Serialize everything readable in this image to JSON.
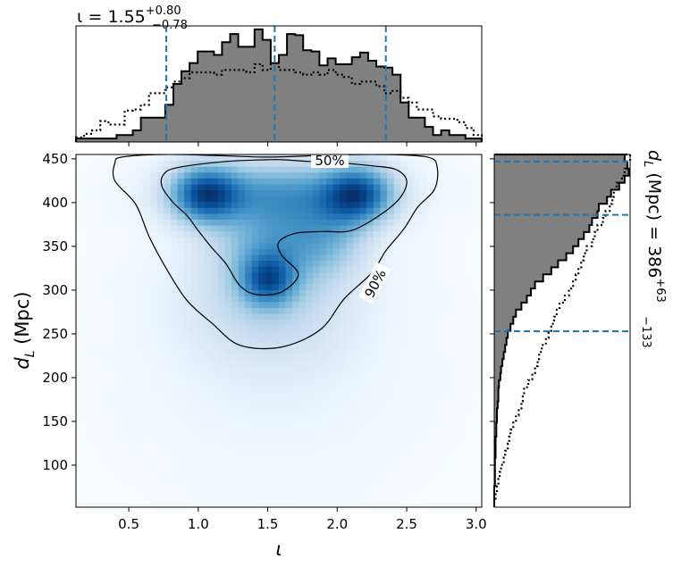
{
  "chart_data": [
    {
      "id": "marginal-iota",
      "type": "histogram-step",
      "title_symbol": "ι",
      "title_value": "1.55",
      "title_plus": "+0.80",
      "title_minus": "−0.78",
      "xlim": [
        0.12,
        3.04
      ],
      "quantile_lines": [
        0.77,
        1.55,
        2.35
      ],
      "bin_edges_start": 0.12,
      "bin_width": 0.0584,
      "posterior": [
        0.03,
        0.03,
        0.03,
        0.03,
        0.03,
        0.06,
        0.06,
        0.1,
        0.21,
        0.21,
        0.21,
        0.32,
        0.5,
        0.61,
        0.68,
        0.78,
        0.78,
        0.75,
        0.86,
        0.93,
        0.82,
        0.82,
        0.97,
        0.88,
        0.68,
        0.75,
        0.93,
        0.92,
        0.79,
        0.78,
        0.66,
        0.72,
        0.67,
        0.67,
        0.73,
        0.77,
        0.7,
        0.65,
        0.64,
        0.58,
        0.34,
        0.21,
        0.21,
        0.13,
        0.06,
        0.1,
        0.06,
        0.06,
        0.03,
        0.03
      ],
      "prior": [
        0.04,
        0.07,
        0.1,
        0.18,
        0.15,
        0.15,
        0.27,
        0.28,
        0.32,
        0.42,
        0.42,
        0.47,
        0.52,
        0.55,
        0.6,
        0.6,
        0.6,
        0.58,
        0.62,
        0.62,
        0.62,
        0.6,
        0.67,
        0.62,
        0.68,
        0.62,
        0.62,
        0.6,
        0.58,
        0.6,
        0.58,
        0.62,
        0.58,
        0.56,
        0.5,
        0.52,
        0.52,
        0.48,
        0.42,
        0.44,
        0.38,
        0.34,
        0.28,
        0.28,
        0.22,
        0.2,
        0.2,
        0.17,
        0.12,
        0.06
      ]
    },
    {
      "id": "joint",
      "type": "heatmap",
      "xlabel": "ι",
      "ylabel_main": "d",
      "ylabel_sub": "L",
      "ylabel_unit": " (Mpc)",
      "xlim": [
        0.12,
        3.04
      ],
      "ylim": [
        52,
        455
      ],
      "xticks": [
        0.5,
        1.0,
        1.5,
        2.0,
        2.5,
        3.0
      ],
      "xtick_labels": [
        "0.5",
        "1.0",
        "1.5",
        "2.0",
        "2.5",
        "3.0"
      ],
      "yticks": [
        100,
        150,
        200,
        250,
        300,
        350,
        400,
        450
      ],
      "ytick_labels": [
        "100",
        "150",
        "200",
        "250",
        "300",
        "350",
        "400",
        "450"
      ],
      "contour_labels": [
        "50%",
        "90%"
      ],
      "blobs": [
        {
          "x": 1.05,
          "y": 410,
          "sx": 0.17,
          "sy": 22,
          "w": 1.0
        },
        {
          "x": 2.15,
          "y": 410,
          "sx": 0.17,
          "sy": 22,
          "w": 0.95
        },
        {
          "x": 1.6,
          "y": 412,
          "sx": 0.45,
          "sy": 25,
          "w": 0.6
        },
        {
          "x": 1.5,
          "y": 312,
          "sx": 0.13,
          "sy": 20,
          "w": 0.75
        },
        {
          "x": 1.55,
          "y": 355,
          "sx": 0.28,
          "sy": 35,
          "w": 0.5
        },
        {
          "x": 1.95,
          "y": 365,
          "sx": 0.2,
          "sy": 30,
          "w": 0.35
        },
        {
          "x": 1.5,
          "y": 290,
          "sx": 0.4,
          "sy": 45,
          "w": 0.25
        },
        {
          "x": 1.55,
          "y": 230,
          "sx": 0.55,
          "sy": 80,
          "w": 0.08
        }
      ],
      "contour_90": [
        [
          0.45,
          452
        ],
        [
          0.75,
          455
        ],
        [
          1.1,
          454
        ],
        [
          1.5,
          452
        ],
        [
          1.9,
          454
        ],
        [
          2.3,
          455
        ],
        [
          2.65,
          452
        ],
        [
          2.72,
          440
        ],
        [
          2.7,
          415
        ],
        [
          2.58,
          395
        ],
        [
          2.48,
          370
        ],
        [
          2.35,
          345
        ],
        [
          2.25,
          320
        ],
        [
          2.05,
          290
        ],
        [
          1.88,
          255
        ],
        [
          1.6,
          235
        ],
        [
          1.3,
          237
        ],
        [
          1.1,
          262
        ],
        [
          0.92,
          288
        ],
        [
          0.78,
          322
        ],
        [
          0.65,
          360
        ],
        [
          0.55,
          398
        ],
        [
          0.4,
          425
        ],
        [
          0.4,
          445
        ]
      ],
      "contour_50": [
        [
          0.75,
          432
        ],
        [
          0.85,
          440
        ],
        [
          1.2,
          447
        ],
        [
          1.5,
          449
        ],
        [
          1.6,
          449
        ],
        [
          1.8,
          447
        ],
        [
          2.05,
          445
        ],
        [
          2.25,
          442
        ],
        [
          2.42,
          438
        ],
        [
          2.5,
          425
        ],
        [
          2.45,
          405
        ],
        [
          2.3,
          385
        ],
        [
          2.1,
          368
        ],
        [
          1.9,
          367
        ],
        [
          1.7,
          365
        ],
        [
          1.58,
          355
        ],
        [
          1.6,
          340
        ],
        [
          1.72,
          318
        ],
        [
          1.6,
          298
        ],
        [
          1.42,
          295
        ],
        [
          1.3,
          305
        ],
        [
          1.2,
          330
        ],
        [
          1.1,
          348
        ],
        [
          1.0,
          368
        ],
        [
          0.92,
          385
        ],
        [
          0.82,
          400
        ],
        [
          0.74,
          418
        ]
      ]
    },
    {
      "id": "marginal-dL",
      "type": "histogram-step",
      "orientation": "horizontal",
      "title_symbol": "d",
      "title_sub": "L",
      "title_unit": " (Mpc) = ",
      "title_value": "386",
      "title_plus": "+63",
      "title_minus": "−133",
      "ylim": [
        52,
        455
      ],
      "quantile_lines": [
        253,
        386,
        447
      ],
      "bin_edges_start": 52,
      "bin_width": 8.06,
      "posterior": [
        0,
        0,
        0,
        0.005,
        0.005,
        0.005,
        0.005,
        0.01,
        0.01,
        0.01,
        0.015,
        0.015,
        0.02,
        0.02,
        0.025,
        0.03,
        0.03,
        0.035,
        0.045,
        0.05,
        0.06,
        0.07,
        0.08,
        0.09,
        0.1,
        0.12,
        0.14,
        0.16,
        0.2,
        0.24,
        0.27,
        0.3,
        0.36,
        0.42,
        0.47,
        0.53,
        0.58,
        0.62,
        0.66,
        0.7,
        0.72,
        0.76,
        0.77,
        0.83,
        0.86,
        0.92,
        0.96,
        0.99,
        0.98,
        0.96
      ],
      "prior": [
        0,
        0.01,
        0.02,
        0.03,
        0.04,
        0.05,
        0.07,
        0.08,
        0.1,
        0.11,
        0.12,
        0.14,
        0.16,
        0.18,
        0.2,
        0.21,
        0.22,
        0.25,
        0.28,
        0.3,
        0.32,
        0.33,
        0.35,
        0.38,
        0.4,
        0.42,
        0.44,
        0.46,
        0.48,
        0.52,
        0.55,
        0.58,
        0.6,
        0.62,
        0.64,
        0.66,
        0.68,
        0.72,
        0.74,
        0.76,
        0.8,
        0.82,
        0.85,
        0.87,
        0.88,
        0.9,
        0.94,
        0.96,
        0.98,
        1.0
      ]
    }
  ]
}
